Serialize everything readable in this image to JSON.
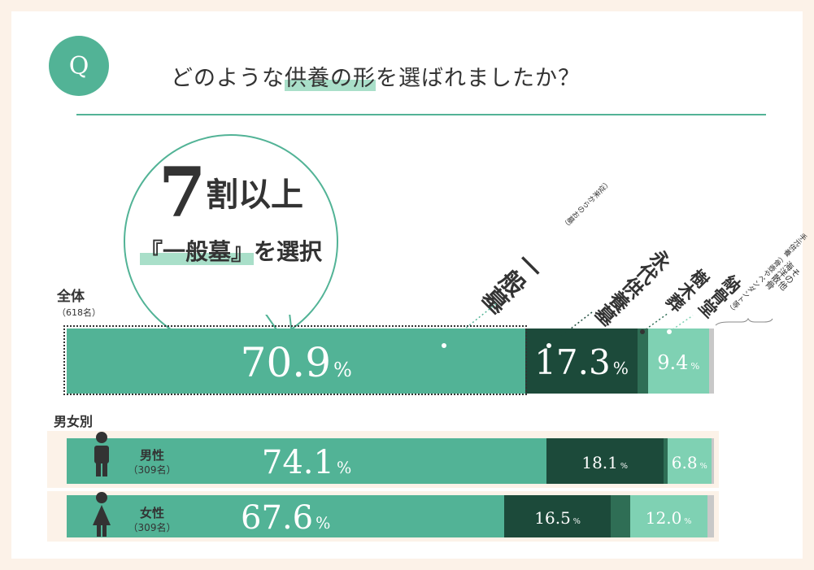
{
  "question": {
    "badge": "Q",
    "text_before": "どのような",
    "text_highlight": "供養の形",
    "text_after": "を選ばれましたか？"
  },
  "headline": {
    "big_number": "7",
    "rest": "割以上",
    "sub_highlight": "『一般墓』",
    "sub_after": "を選択"
  },
  "categories": {
    "general": "一般墓",
    "general_note": "（従来からのお墓）",
    "perpetual": "永代供養墓",
    "tree": "樹木葬",
    "charnel": "納骨堂",
    "other_1": "手元供養（骨壺やペンダント等）",
    "other_2": "海洋散骨",
    "other_3": "その他"
  },
  "rows": {
    "all_label": "全体",
    "all_n": "（618名）",
    "gender_heading": "男女別",
    "male_label": "男性",
    "male_n": "（309名）",
    "female_label": "女性",
    "female_n": "（309名）"
  },
  "unit": "%",
  "colors": {
    "general": "#52b396",
    "perpetual": "#1c4a3a",
    "tree": "#2f6e55",
    "charnel": "#7fd1b3",
    "other": "#c8c8c8",
    "accent": "#52b396",
    "row_bg": "#fcf2e8"
  },
  "chart_data": {
    "type": "bar",
    "orientation": "horizontal",
    "stacked": true,
    "categories": [
      "全体",
      "男性",
      "女性"
    ],
    "series": [
      {
        "name": "一般墓",
        "values": [
          70.9,
          74.1,
          67.6
        ]
      },
      {
        "name": "永代供養墓",
        "values": [
          17.3,
          18.1,
          16.5
        ]
      },
      {
        "name": "樹木葬",
        "values": [
          1.6,
          0.6,
          2.9
        ]
      },
      {
        "name": "納骨堂",
        "values": [
          9.4,
          6.8,
          12.0
        ]
      },
      {
        "name": "手元供養・海洋散骨・その他",
        "values": [
          0.8,
          0.4,
          1.0
        ]
      }
    ],
    "labels_shown": [
      [
        "70.9",
        "17.3",
        "",
        "9.4",
        ""
      ],
      [
        "74.1",
        "18.1",
        "",
        "6.8",
        ""
      ],
      [
        "67.6",
        "16.5",
        "",
        "12.0",
        ""
      ]
    ],
    "xlim": [
      0,
      100
    ]
  }
}
